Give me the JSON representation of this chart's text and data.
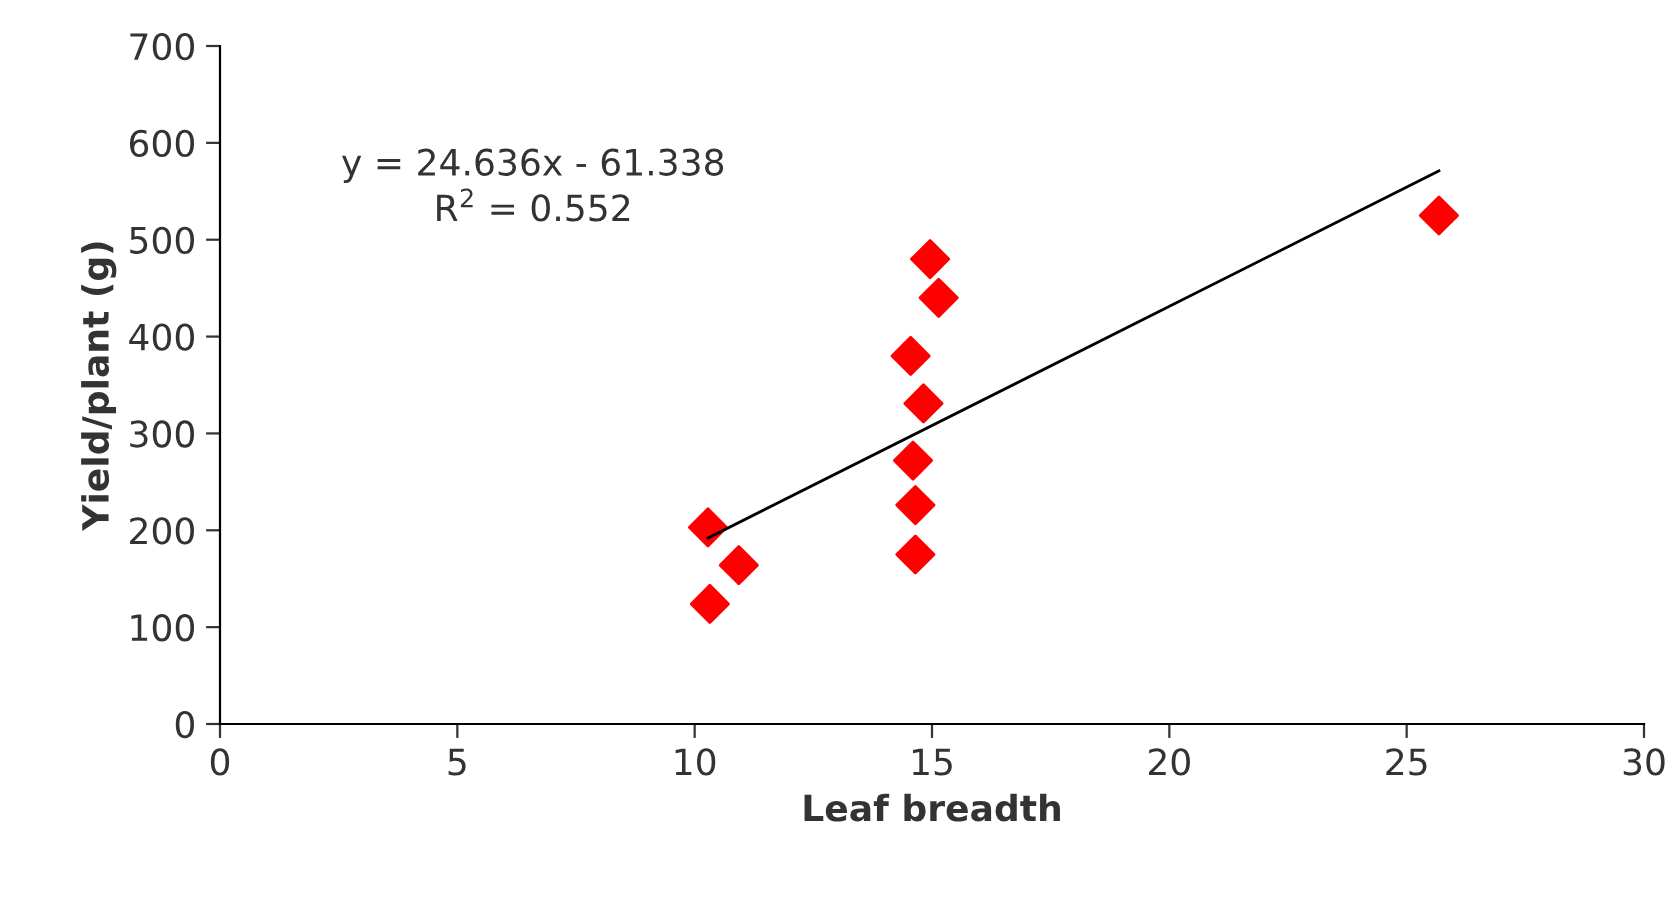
{
  "chart_data": {
    "type": "scatter",
    "xlabel": "Leaf breadth",
    "ylabel": "Yield/plant (g)",
    "xlim": [
      0,
      30
    ],
    "xticks": [
      0,
      5,
      10,
      15,
      20,
      25,
      30
    ],
    "ylim": [
      0,
      700
    ],
    "yticks": [
      0,
      100,
      200,
      300,
      400,
      500,
      600,
      700
    ],
    "grid": false,
    "legend": false,
    "series": [
      {
        "marker": "diamond",
        "color": "#ff0000",
        "x": [
          10.28,
          10.32,
          10.93,
          14.47,
          14.6,
          14.55,
          14.65,
          14.65,
          14.82,
          14.96,
          15.14,
          25.68
        ],
        "values": [
          203,
          124,
          164,
          null,
          272,
          380,
          226,
          175,
          331,
          480,
          440,
          525
        ]
      },
      {
        "type": "line",
        "color": "#000000",
        "line_style": "solid",
        "x": [
          10.28,
          25.68
        ],
        "values": [
          192,
          571
        ]
      }
    ],
    "annotations": [
      "y = 24.636x - 61.338\nR$^{2}$ = 0.552"
    ]
  }
}
